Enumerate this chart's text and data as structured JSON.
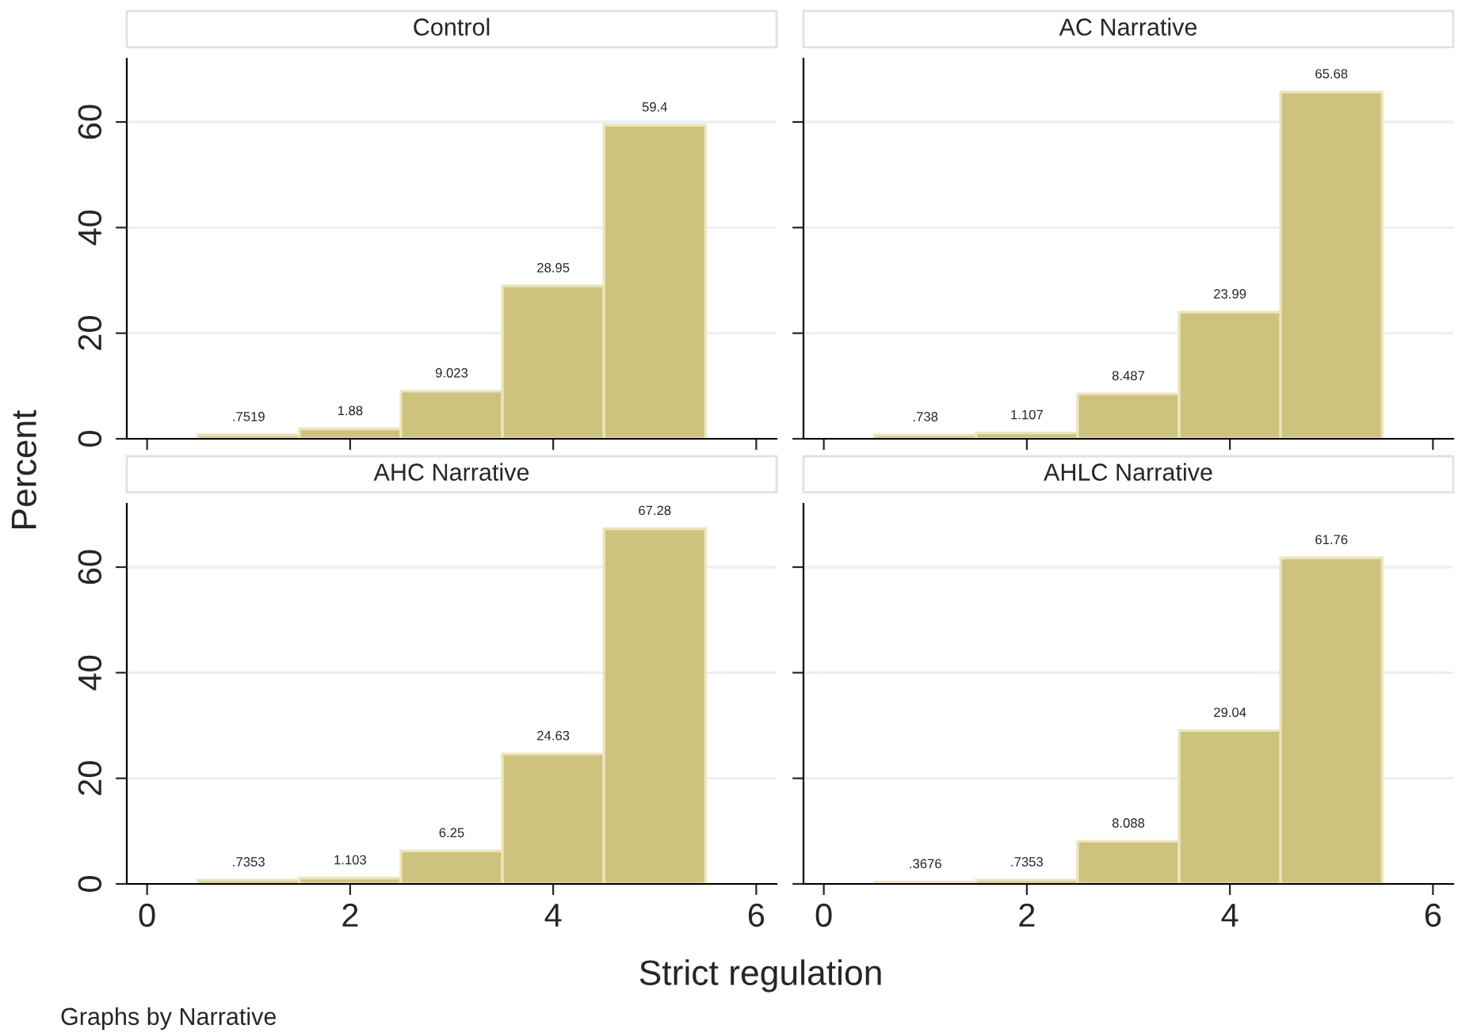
{
  "chart_data": [
    {
      "type": "histogram",
      "title": "Control",
      "ylabel": "Percent",
      "bins": [
        0.5,
        1.5,
        2.5,
        3.5,
        4.5,
        5.5
      ],
      "values": [
        0.7519,
        1.88,
        9.023,
        28.95,
        59.4
      ],
      "value_labels": [
        ".7519",
        "1.88",
        "9.023",
        "28.95",
        "59.4"
      ],
      "color": "#cdc37f",
      "xlim": [
        -0.2,
        6.2
      ],
      "xticks": [
        0,
        2,
        4,
        6
      ],
      "ylim": [
        0,
        72
      ],
      "yticks": [
        0,
        20,
        40,
        60
      ],
      "grid": "y",
      "tick_labels": "y"
    },
    {
      "type": "histogram",
      "title": "AC Narrative",
      "bins": [
        0.5,
        1.5,
        2.5,
        3.5,
        4.5,
        5.5
      ],
      "values": [
        0.738,
        1.107,
        8.487,
        23.99,
        65.68
      ],
      "value_labels": [
        ".738",
        "1.107",
        "8.487",
        "23.99",
        "65.68"
      ],
      "color": "#cdc37f",
      "xlim": [
        -0.2,
        6.2
      ],
      "xticks": [
        0,
        2,
        4,
        6
      ],
      "ylim": [
        0,
        72
      ],
      "yticks": [
        0,
        20,
        40,
        60
      ],
      "grid": "y",
      "tick_labels": false
    },
    {
      "type": "histogram",
      "title": "AHC Narrative",
      "xlabel": "Strict regulation",
      "annotations": [
        "Graphs by Narrative"
      ],
      "bins": [
        0.5,
        1.5,
        2.5,
        3.5,
        4.5,
        5.5
      ],
      "values": [
        0.7353,
        1.103,
        6.25,
        24.63,
        67.28
      ],
      "value_labels": [
        ".7353",
        "1.103",
        "6.25",
        "24.63",
        "67.28"
      ],
      "color": "#cdc37f",
      "xlim": [
        -0.2,
        6.2
      ],
      "xticks": [
        0,
        2,
        4,
        6
      ],
      "ylim": [
        0,
        72
      ],
      "yticks": [
        0,
        20,
        40,
        60
      ],
      "grid": "y"
    },
    {
      "type": "histogram",
      "title": "AHLC Narrative",
      "bins": [
        0.5,
        1.5,
        2.5,
        3.5,
        4.5,
        5.5
      ],
      "values": [
        0.3676,
        0.7353,
        8.088,
        29.04,
        61.76
      ],
      "value_labels": [
        ".3676",
        ".7353",
        "8.088",
        "29.04",
        "61.76"
      ],
      "color": "#cdc37f",
      "xlim": [
        -0.2,
        6.2
      ],
      "xticks": [
        0,
        2,
        4,
        6
      ],
      "ylim": [
        0,
        72
      ],
      "yticks": [
        0,
        20,
        40,
        60
      ],
      "grid": "y",
      "tick_labels": "x"
    }
  ]
}
